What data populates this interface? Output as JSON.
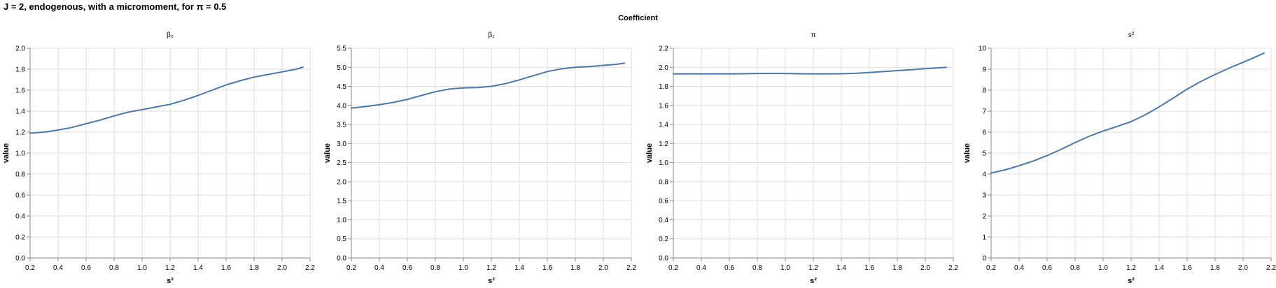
{
  "title": "J = 2, endogenous, with a micromoment,  for π = 0.5",
  "column_title": "Coefficient",
  "colors": {
    "line": "#4c78a8",
    "grid": "#dddddd",
    "axis": "#888888"
  },
  "chart_data": [
    {
      "type": "line",
      "title": "β₀",
      "xlabel": "s²",
      "ylabel": "value",
      "xlim": [
        0.2,
        2.2
      ],
      "ylim": [
        0,
        2.0
      ],
      "xticks": [
        0.2,
        0.4,
        0.6,
        0.8,
        1.0,
        1.2,
        1.4,
        1.6,
        1.8,
        2.0,
        2.2
      ],
      "xtick_labels": [
        "0.2",
        "0.4",
        "0.6",
        "0.8",
        "1.0",
        "1.2",
        "1.4",
        "1.6",
        "1.8",
        "2.0",
        "2.2"
      ],
      "yticks": [
        0.0,
        0.2,
        0.4,
        0.6,
        0.8,
        1.0,
        1.2,
        1.4,
        1.6,
        1.8,
        2.0
      ],
      "ytick_labels": [
        "0.0",
        "0.2",
        "0.4",
        "0.6",
        "0.8",
        "1.0",
        "1.2",
        "1.4",
        "1.6",
        "1.8",
        "2.0"
      ],
      "grid": true,
      "x": [
        0.2,
        0.3,
        0.4,
        0.5,
        0.6,
        0.7,
        0.8,
        0.9,
        1.0,
        1.1,
        1.2,
        1.3,
        1.4,
        1.5,
        1.6,
        1.7,
        1.8,
        1.9,
        2.0,
        2.1,
        2.15
      ],
      "y": [
        1.19,
        1.2,
        1.22,
        1.245,
        1.28,
        1.315,
        1.355,
        1.39,
        1.415,
        1.44,
        1.465,
        1.505,
        1.55,
        1.6,
        1.65,
        1.69,
        1.725,
        1.75,
        1.775,
        1.8,
        1.82
      ]
    },
    {
      "type": "line",
      "title": "β₁",
      "xlabel": "s²",
      "ylabel": "value",
      "xlim": [
        0.2,
        2.2
      ],
      "ylim": [
        0,
        5.5
      ],
      "xticks": [
        0.2,
        0.4,
        0.6,
        0.8,
        1.0,
        1.2,
        1.4,
        1.6,
        1.8,
        2.0,
        2.2
      ],
      "xtick_labels": [
        "0.2",
        "0.4",
        "0.6",
        "0.8",
        "1.0",
        "1.2",
        "1.4",
        "1.6",
        "1.8",
        "2.0",
        "2.2"
      ],
      "yticks": [
        0.0,
        0.5,
        1.0,
        1.5,
        2.0,
        2.5,
        3.0,
        3.5,
        4.0,
        4.5,
        5.0,
        5.5
      ],
      "ytick_labels": [
        "0.0",
        "0.5",
        "1.0",
        "1.5",
        "2.0",
        "2.5",
        "3.0",
        "3.5",
        "4.0",
        "4.5",
        "5.0",
        "5.5"
      ],
      "grid": true,
      "x": [
        0.2,
        0.3,
        0.4,
        0.5,
        0.6,
        0.7,
        0.8,
        0.9,
        1.0,
        1.1,
        1.2,
        1.3,
        1.4,
        1.5,
        1.6,
        1.7,
        1.8,
        1.9,
        2.0,
        2.1,
        2.15
      ],
      "y": [
        3.93,
        3.97,
        4.02,
        4.08,
        4.16,
        4.26,
        4.36,
        4.43,
        4.46,
        4.47,
        4.5,
        4.57,
        4.67,
        4.78,
        4.89,
        4.96,
        5.0,
        5.02,
        5.05,
        5.08,
        5.11
      ]
    },
    {
      "type": "line",
      "title": "π",
      "xlabel": "s²",
      "ylabel": "value",
      "xlim": [
        0.2,
        2.2
      ],
      "ylim": [
        0,
        2.2
      ],
      "xticks": [
        0.2,
        0.4,
        0.6,
        0.8,
        1.0,
        1.2,
        1.4,
        1.6,
        1.8,
        2.0,
        2.2
      ],
      "xtick_labels": [
        "0.2",
        "0.4",
        "0.6",
        "0.8",
        "1.0",
        "1.2",
        "1.4",
        "1.6",
        "1.8",
        "2.0",
        "2.2"
      ],
      "yticks": [
        0.0,
        0.2,
        0.4,
        0.6,
        0.8,
        1.0,
        1.2,
        1.4,
        1.6,
        1.8,
        2.0,
        2.2
      ],
      "ytick_labels": [
        "0.0",
        "0.2",
        "0.4",
        "0.6",
        "0.8",
        "1.0",
        "1.2",
        "1.4",
        "1.6",
        "1.8",
        "2.0",
        "2.2"
      ],
      "grid": true,
      "x": [
        0.2,
        0.3,
        0.4,
        0.5,
        0.6,
        0.7,
        0.8,
        0.9,
        1.0,
        1.1,
        1.2,
        1.3,
        1.4,
        1.5,
        1.6,
        1.7,
        1.8,
        1.9,
        2.0,
        2.1,
        2.15
      ],
      "y": [
        1.93,
        1.93,
        1.93,
        1.93,
        1.93,
        1.932,
        1.935,
        1.935,
        1.935,
        1.932,
        1.93,
        1.93,
        1.932,
        1.937,
        1.945,
        1.955,
        1.965,
        1.975,
        1.985,
        1.995,
        2.0
      ]
    },
    {
      "type": "line",
      "title": "s²",
      "xlabel": "s²",
      "ylabel": "value",
      "xlim": [
        0.2,
        2.2
      ],
      "ylim": [
        0,
        10
      ],
      "xticks": [
        0.2,
        0.4,
        0.6,
        0.8,
        1.0,
        1.2,
        1.4,
        1.6,
        1.8,
        2.0,
        2.2
      ],
      "xtick_labels": [
        "0.2",
        "0.4",
        "0.6",
        "0.8",
        "1.0",
        "1.2",
        "1.4",
        "1.6",
        "1.8",
        "2.0",
        "2.2"
      ],
      "yticks": [
        0,
        1,
        2,
        3,
        4,
        5,
        6,
        7,
        8,
        9,
        10
      ],
      "ytick_labels": [
        "0",
        "1",
        "2",
        "3",
        "4",
        "5",
        "6",
        "7",
        "8",
        "9",
        "10"
      ],
      "grid": true,
      "x": [
        0.2,
        0.3,
        0.4,
        0.5,
        0.6,
        0.7,
        0.8,
        0.9,
        1.0,
        1.1,
        1.2,
        1.3,
        1.4,
        1.5,
        1.6,
        1.7,
        1.8,
        1.9,
        2.0,
        2.1,
        2.15
      ],
      "y": [
        4.05,
        4.2,
        4.4,
        4.62,
        4.88,
        5.18,
        5.5,
        5.8,
        6.05,
        6.27,
        6.5,
        6.82,
        7.2,
        7.62,
        8.05,
        8.42,
        8.75,
        9.05,
        9.33,
        9.62,
        9.77
      ]
    }
  ]
}
